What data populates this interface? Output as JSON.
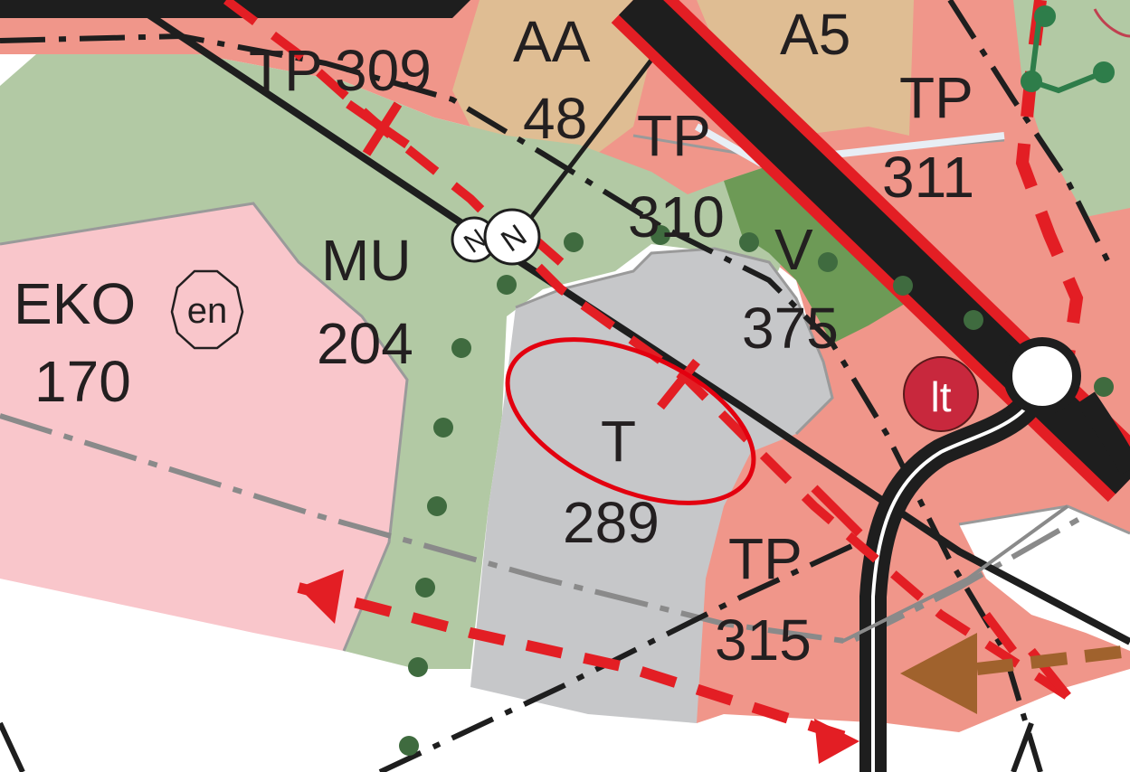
{
  "zones": [
    {
      "id": "AA",
      "code": "AA",
      "number": "48"
    },
    {
      "id": "A5",
      "code": "A5",
      "number": ""
    },
    {
      "id": "TP309",
      "code": "TP",
      "number": "309"
    },
    {
      "id": "TP310",
      "code": "TP",
      "number": "310"
    },
    {
      "id": "TP311",
      "code": "TP",
      "number": "311"
    },
    {
      "id": "MU",
      "code": "MU",
      "number": "204"
    },
    {
      "id": "V",
      "code": "V",
      "number": "375"
    },
    {
      "id": "EKO",
      "code": "EKO",
      "number": "170"
    },
    {
      "id": "T",
      "code": "T",
      "number": "289"
    },
    {
      "id": "TP315",
      "code": "TP",
      "number": "315"
    }
  ],
  "symbols": {
    "en_label": "en",
    "lt_label": "lt",
    "compass_label": "N"
  },
  "colors": {
    "zone_tp": "#f0968a",
    "zone_aa": "#dfbd93",
    "zone_mu": "#b2c9a4",
    "zone_v": "#6d9a56",
    "zone_eko": "#f9c6cb",
    "zone_t": "#c6c7c9",
    "road": "#1e1e1e",
    "red_line": "#e31e24",
    "green_dot": "#3f6b3f",
    "highlight_ellipse": "#e3000f",
    "brown_arrow": "#a0622d"
  }
}
